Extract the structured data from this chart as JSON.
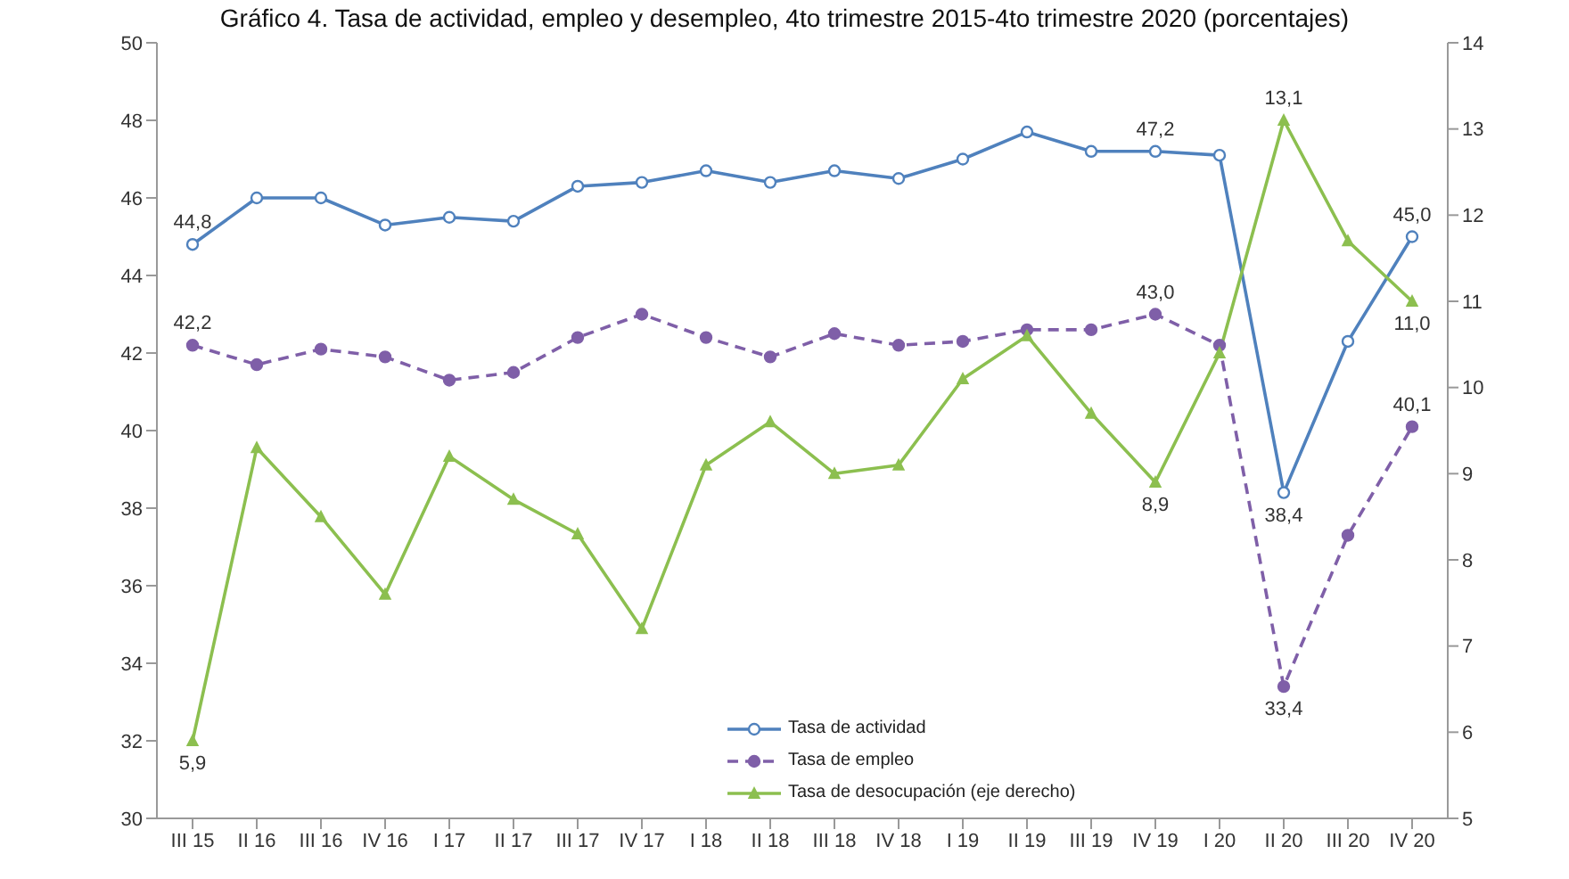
{
  "chart_data": {
    "type": "line",
    "title": "Gráfico 4. Tasa de actividad, empleo y desempleo, 4to trimestre 2015-4to trimestre 2020 (porcentajes)",
    "categories": [
      "III 15",
      "II 16",
      "III 16",
      "IV 16",
      "I 17",
      "II 17",
      "III 17",
      "IV 17",
      "I 18",
      "II 18",
      "III 18",
      "IV 18",
      "I 19",
      "II 19",
      "III 19",
      "IV 19",
      "I 20",
      "II 20",
      "III 20",
      "IV 20"
    ],
    "series": [
      {
        "name": "Tasa de actividad",
        "color": "#4f81bd",
        "marker": "circle",
        "line_style": "solid",
        "values": [
          44.8,
          46.0,
          46.0,
          45.3,
          45.5,
          45.4,
          46.3,
          46.4,
          46.7,
          46.4,
          46.7,
          46.5,
          47.0,
          47.7,
          47.2,
          47.2,
          47.1,
          38.4,
          42.3,
          45.0
        ],
        "value_labels": [
          "44,8",
          null,
          null,
          null,
          null,
          null,
          null,
          null,
          null,
          null,
          null,
          null,
          null,
          null,
          null,
          "47,2",
          null,
          "38,4",
          null,
          "45,0"
        ]
      },
      {
        "name": "Tasa de empleo",
        "color": "#7f5fa8",
        "marker": "circle",
        "line_style": "dashed",
        "values": [
          42.2,
          41.7,
          42.1,
          41.9,
          41.3,
          41.5,
          42.4,
          43.0,
          42.4,
          41.9,
          42.5,
          42.2,
          42.3,
          42.6,
          42.6,
          43.0,
          42.2,
          33.4,
          37.3,
          40.1
        ],
        "value_labels": [
          "42,2",
          null,
          null,
          null,
          null,
          null,
          null,
          null,
          null,
          null,
          null,
          null,
          null,
          null,
          null,
          "43,0",
          null,
          "33,4",
          null,
          "40,1"
        ]
      },
      {
        "name": "Tasa de desocupación (eje derecho)",
        "color": "#8cbf4f",
        "marker": "triangle",
        "line_style": "solid",
        "axis": "y2",
        "values": [
          5.9,
          9.3,
          8.5,
          7.6,
          9.2,
          8.7,
          8.3,
          7.2,
          9.1,
          9.6,
          9.0,
          9.1,
          10.1,
          10.6,
          9.7,
          8.9,
          10.4,
          13.1,
          11.7,
          11.0
        ],
        "value_labels": [
          "5,9",
          null,
          null,
          null,
          null,
          null,
          null,
          null,
          null,
          null,
          null,
          null,
          null,
          null,
          null,
          "8,9",
          null,
          "13,1",
          null,
          "11,0"
        ]
      }
    ],
    "ylim": [
      30,
      50
    ],
    "yticks": [
      30,
      32,
      34,
      36,
      38,
      40,
      42,
      44,
      46,
      48,
      50
    ],
    "y2lim": [
      5,
      14
    ],
    "y2ticks": [
      5,
      6,
      7,
      8,
      9,
      10,
      11,
      12,
      13,
      14
    ],
    "legend": "bottom"
  }
}
